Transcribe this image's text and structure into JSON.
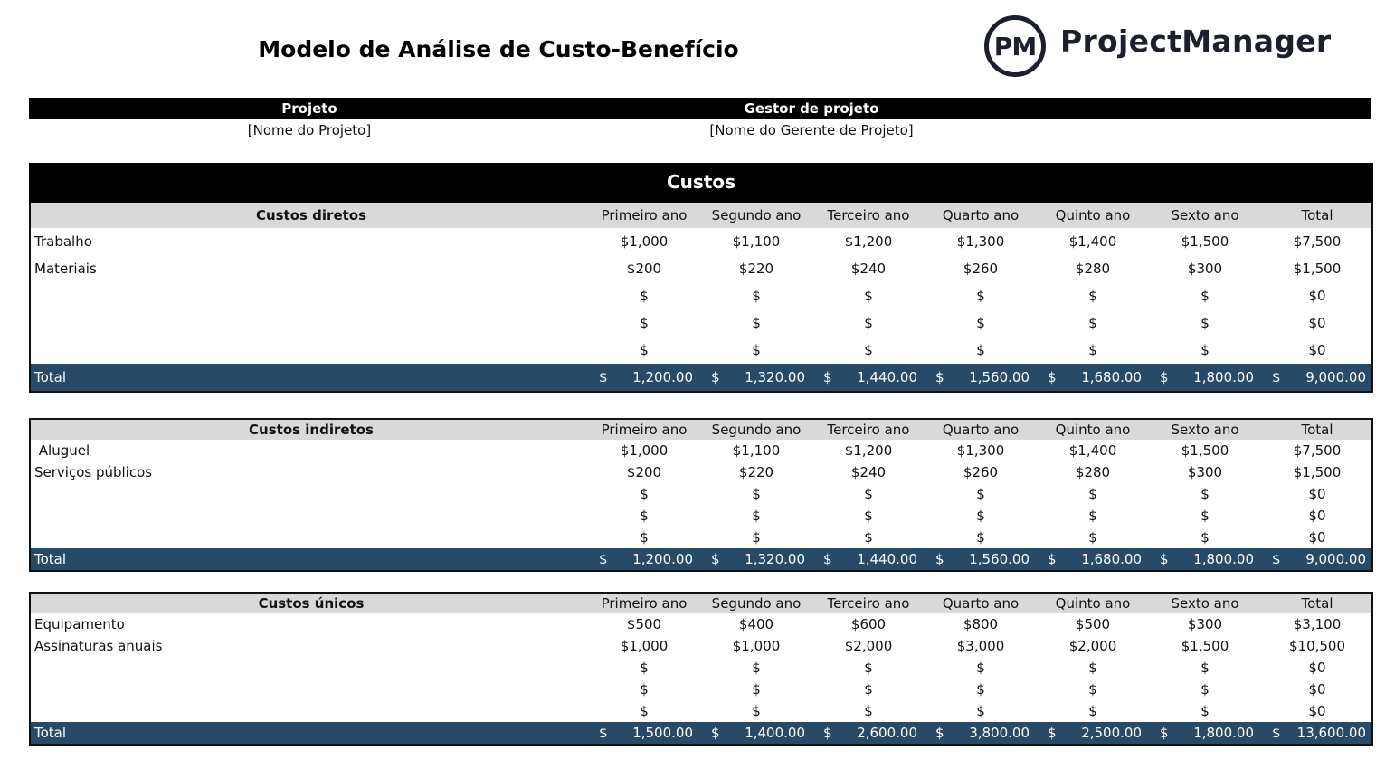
{
  "title": "Modelo de Análise de Custo-Benefício",
  "logo": {
    "mark": "PM",
    "name": "ProjectManager"
  },
  "meta": {
    "project_label": "Projeto",
    "manager_label": "Gestor de projeto",
    "project_value": "[Nome do Projeto]",
    "manager_value": "[Nome do Gerente de Projeto]"
  },
  "costs_heading": "Custos",
  "years": [
    "Primeiro ano",
    "Segundo ano",
    "Terceiro ano",
    "Quarto ano",
    "Quinto ano",
    "Sexto ano",
    "Total"
  ],
  "sections": [
    {
      "name": "Custos diretos",
      "rows": [
        {
          "label": "Trabalho",
          "values": [
            "$1,000",
            "$1,100",
            "$1,200",
            "$1,300",
            "$1,400",
            "$1,500",
            "$7,500"
          ]
        },
        {
          "label": "Materiais",
          "values": [
            "$200",
            "$220",
            "$240",
            "$260",
            "$280",
            "$300",
            "$1,500"
          ]
        },
        {
          "label": "",
          "values": [
            "$",
            "$",
            "$",
            "$",
            "$",
            "$",
            "$0"
          ]
        },
        {
          "label": "",
          "values": [
            "$",
            "$",
            "$",
            "$",
            "$",
            "$",
            "$0"
          ]
        },
        {
          "label": "",
          "values": [
            "$",
            "$",
            "$",
            "$",
            "$",
            "$",
            "$0"
          ]
        }
      ],
      "total_label": "Total",
      "totals": [
        "1,200.00",
        "1,320.00",
        "1,440.00",
        "1,560.00",
        "1,680.00",
        "1,800.00",
        "9,000.00"
      ]
    },
    {
      "name": "Custos indiretos",
      "rows": [
        {
          "label": " Aluguel",
          "values": [
            "$1,000",
            "$1,100",
            "$1,200",
            "$1,300",
            "$1,400",
            "$1,500",
            "$7,500"
          ]
        },
        {
          "label": "Serviços públicos",
          "values": [
            "$200",
            "$220",
            "$240",
            "$260",
            "$280",
            "$300",
            "$1,500"
          ]
        },
        {
          "label": "",
          "values": [
            "$",
            "$",
            "$",
            "$",
            "$",
            "$",
            "$0"
          ]
        },
        {
          "label": "",
          "values": [
            "$",
            "$",
            "$",
            "$",
            "$",
            "$",
            "$0"
          ]
        },
        {
          "label": "",
          "values": [
            "$",
            "$",
            "$",
            "$",
            "$",
            "$",
            "$0"
          ]
        }
      ],
      "total_label": "Total",
      "totals": [
        "1,200.00",
        "1,320.00",
        "1,440.00",
        "1,560.00",
        "1,680.00",
        "1,800.00",
        "9,000.00"
      ]
    },
    {
      "name": "Custos únicos",
      "rows": [
        {
          "label": "Equipamento",
          "values": [
            "$500",
            "$400",
            "$600",
            "$800",
            "$500",
            "$300",
            "$3,100"
          ]
        },
        {
          "label": "Assinaturas anuais",
          "values": [
            "$1,000",
            "$1,000",
            "$2,000",
            "$3,000",
            "$2,000",
            "$1,500",
            "$10,500"
          ]
        },
        {
          "label": "",
          "values": [
            "$",
            "$",
            "$",
            "$",
            "$",
            "$",
            "$0"
          ]
        },
        {
          "label": "",
          "values": [
            "$",
            "$",
            "$",
            "$",
            "$",
            "$",
            "$0"
          ]
        },
        {
          "label": "",
          "values": [
            "$",
            "$",
            "$",
            "$",
            "$",
            "$",
            "$0"
          ]
        }
      ],
      "total_label": "Total",
      "totals": [
        "1,500.00",
        "1,400.00",
        "2,600.00",
        "3,800.00",
        "2,500.00",
        "1,800.00",
        "13,600.00"
      ]
    }
  ],
  "currency_symbol": "$",
  "colors": {
    "header_black": "#000000",
    "subheader_gray": "#d9d9d9",
    "total_navy": "#264a67"
  }
}
